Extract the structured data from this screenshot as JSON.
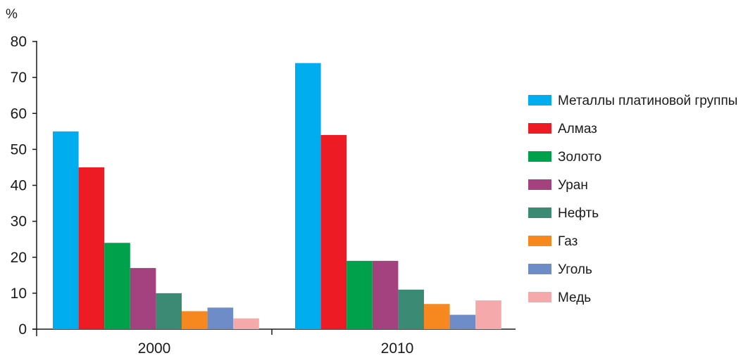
{
  "chart_data": {
    "type": "bar",
    "unit_label": "%",
    "categories": [
      "2000",
      "2010"
    ],
    "yticks": [
      "0",
      "10",
      "20",
      "30",
      "40",
      "50",
      "60",
      "70",
      "80"
    ],
    "ylim": [
      0,
      80
    ],
    "legend_position": "right",
    "grid": false,
    "series": [
      {
        "name": "Металлы платиновой группы",
        "color": "#00aeef",
        "values": [
          55,
          74
        ]
      },
      {
        "name": "Алмаз",
        "color": "#ed1c24",
        "values": [
          45,
          54
        ]
      },
      {
        "name": "Золото",
        "color": "#00a14b",
        "values": [
          24,
          19
        ]
      },
      {
        "name": "Уран",
        "color": "#a3427f",
        "values": [
          17,
          19
        ]
      },
      {
        "name": "Нефть",
        "color": "#3a8a74",
        "values": [
          10,
          11
        ]
      },
      {
        "name": "Газ",
        "color": "#f7871f",
        "values": [
          5,
          7
        ]
      },
      {
        "name": "Уголь",
        "color": "#6d8cc8",
        "values": [
          6,
          4
        ]
      },
      {
        "name": "Медь",
        "color": "#f6a9ab",
        "values": [
          3,
          8
        ]
      }
    ]
  }
}
